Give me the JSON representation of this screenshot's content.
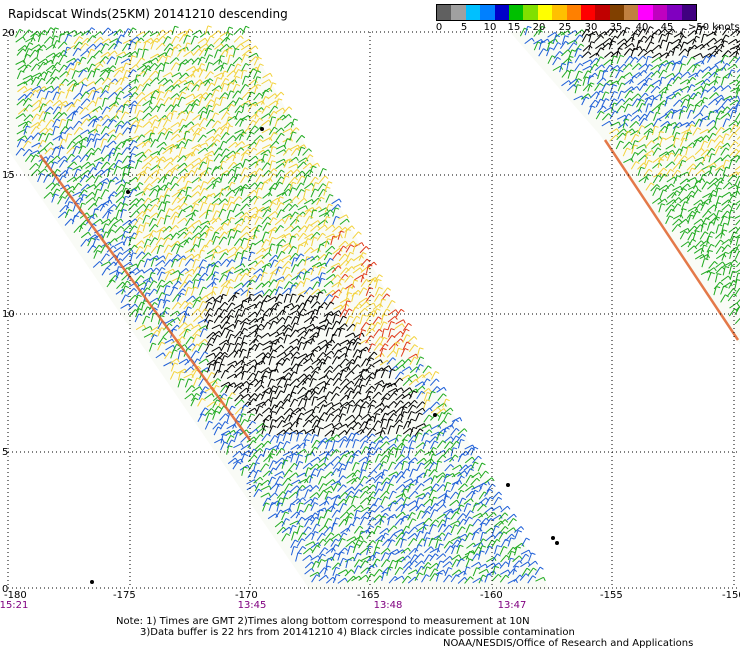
{
  "title": "Rapidscat Winds(25KM) 20141210 descending",
  "legend": {
    "colors": [
      "#606060",
      "#a0a0a0",
      "#00c0ff",
      "#0080ff",
      "#0000c8",
      "#00c000",
      "#80e000",
      "#ffff00",
      "#ffc000",
      "#ff8000",
      "#ff0000",
      "#c00000",
      "#804000",
      "#c08040",
      "#ff00ff",
      "#c000c0",
      "#8000c0",
      "#400080"
    ],
    "ticks": [
      "0",
      "5",
      "10",
      "15",
      "20",
      "25",
      "30",
      "35",
      "40",
      "45"
    ],
    "unit_label": ">50 knots"
  },
  "axes": {
    "x_ticks": [
      "-180",
      "-175",
      "-170",
      "-165",
      "-160",
      "-155",
      "-150"
    ],
    "y_ticks": [
      "20",
      "15",
      "10",
      "5",
      "0"
    ]
  },
  "time_labels": [
    "15:21",
    "13:45",
    "13:48",
    "13:47"
  ],
  "notes": [
    "Note: 1) Times are GMT 2)Times along bottom correspond to measurement at 10N",
    "3)Data buffer is 22 hrs from 20141210 4) Black circles indicate possible contamination",
    "NOAA/NESDIS/Office of Research and Applications"
  ],
  "wind_speed_colors": {
    "calm": "#000000",
    "light": "#1e5fd8",
    "moderate": "#1faa1f",
    "fresh": "#f3d23c",
    "strong": "#e03a1a"
  }
}
